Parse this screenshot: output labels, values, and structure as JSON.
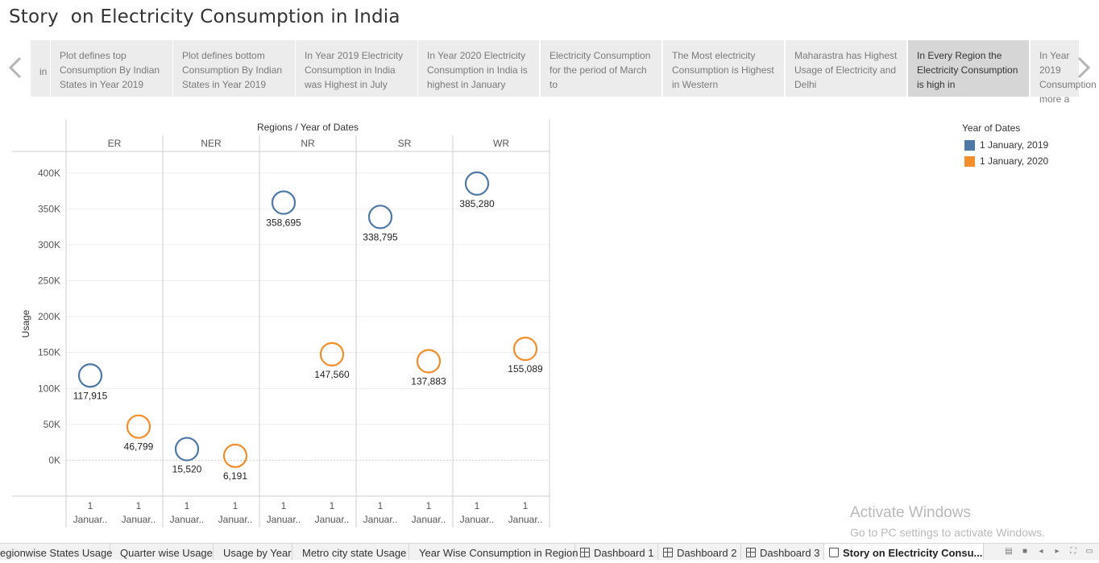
{
  "title": "Story  on Electricity Consumption in India",
  "story_points": [
    {
      "label": "in"
    },
    {
      "label": "Plot defines top Consumption By Indian States in Year 2019"
    },
    {
      "label": "Plot defines bottom Consumption By Indian States in Year 2019"
    },
    {
      "label": "In Year 2019 Electricity Consumption in India was Highest in July"
    },
    {
      "label": "In Year 2020 Electricity Consumption in India is highest in January"
    },
    {
      "label": "Electricity Consumption for the period of March to"
    },
    {
      "label": "The Most electricity Consumption is Highest in Western"
    },
    {
      "label": "Maharastra has Highest Usage of Electricity and Delhi"
    },
    {
      "label": "In Every Region the Electricity Consumption is high in"
    },
    {
      "label": "In Year 2019 Consumption more a"
    }
  ],
  "nav": {
    "prev": "‹",
    "next": "›",
    "prev_icon": "chevron-left-icon",
    "next_icon": "chevron-right-icon"
  },
  "chart_data": {
    "type": "scatter",
    "header": "Regions / Year of Dates",
    "ylabel": "Usage",
    "ylim": [
      -50000,
      430000
    ],
    "yticks": [
      0,
      50000,
      100000,
      150000,
      200000,
      250000,
      300000,
      350000,
      400000
    ],
    "ytick_labels": [
      "0K",
      "50K",
      "100K",
      "150K",
      "200K",
      "250K",
      "300K",
      "350K",
      "400K"
    ],
    "regions": [
      "ER",
      "NER",
      "NR",
      "SR",
      "WR"
    ],
    "x_tick_line1": "1",
    "x_tick_line2": "Januar..",
    "series": [
      {
        "name": "1 January, 2019",
        "color": "#4e79a7",
        "values": [
          117915,
          15520,
          358695,
          338795,
          385280
        ],
        "labels": [
          "117,915",
          "15,520",
          "358,695",
          "338,795",
          "385,280"
        ]
      },
      {
        "name": "1 January, 2020",
        "color": "#f28e2b",
        "values": [
          46799,
          6191,
          147560,
          137883,
          155089
        ],
        "labels": [
          "46,799",
          "6,191",
          "147,560",
          "137,883",
          "155,089"
        ]
      }
    ]
  },
  "legend": {
    "title": "Year of Dates",
    "items": [
      {
        "label": "1 January, 2019",
        "color": "#4e79a7"
      },
      {
        "label": "1 January, 2020",
        "color": "#f28e2b"
      }
    ]
  },
  "watermark": {
    "title": "Activate Windows",
    "subtitle": "Go to PC settings to activate Windows."
  },
  "tabs": [
    {
      "label": "egionwise States Usage",
      "icon": ""
    },
    {
      "label": "Quarter wise Usage",
      "icon": ""
    },
    {
      "label": "Usage by Year",
      "icon": ""
    },
    {
      "label": "Metro city state Usage",
      "icon": ""
    },
    {
      "label": "Year Wise Consumption in Region",
      "icon": ""
    },
    {
      "label": "Dashboard 1",
      "icon": "dashboard-icon"
    },
    {
      "label": "Dashboard 2",
      "icon": "dashboard-icon"
    },
    {
      "label": "Dashboard 3",
      "icon": "dashboard-icon"
    },
    {
      "label": "Story  on Electricity Consu...",
      "icon": "story-icon"
    }
  ],
  "tab_controls": [
    "show-sheets-icon",
    "filmstrip-icon",
    "scroll-left-icon",
    "scroll-right-icon",
    "fullscreen-icon",
    "present-icon"
  ]
}
